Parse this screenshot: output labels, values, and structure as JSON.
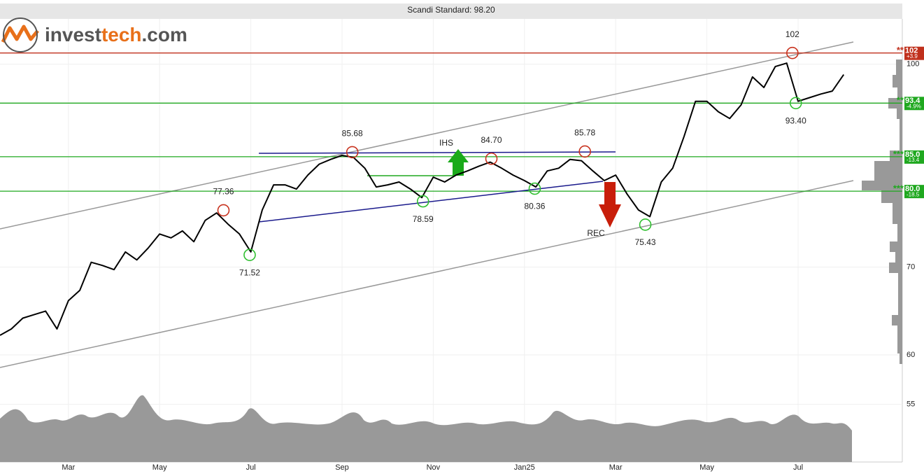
{
  "chart_data": {
    "type": "line",
    "title": "Scandi Standard: 98.20",
    "logo": [
      "invest",
      "tech",
      ".com"
    ],
    "categories": [
      null,
      null,
      null,
      null,
      null,
      null,
      "Mar",
      null,
      null,
      null,
      null,
      null,
      null,
      null,
      "May",
      null,
      null,
      null,
      null,
      null,
      null,
      null,
      "Jul",
      null,
      null,
      null,
      null,
      null,
      null,
      null,
      "Sep",
      null,
      null,
      null,
      null,
      null,
      null,
      null,
      "Nov",
      null,
      null,
      null,
      null,
      null,
      null,
      null,
      "Jan25",
      null,
      null,
      null,
      null,
      null,
      null,
      null,
      "Mar",
      null,
      null,
      null,
      null,
      null,
      null,
      null,
      "May",
      null,
      null,
      null,
      null,
      null,
      null,
      null,
      "Jul",
      null,
      null,
      null,
      null
    ],
    "values": [
      62.1,
      62.8,
      64.0,
      64.4,
      64.8,
      62.8,
      66.0,
      67.2,
      70.6,
      70.2,
      69.7,
      71.9,
      70.9,
      72.4,
      74.2,
      73.7,
      74.6,
      73.2,
      76.0,
      77.0,
      75.5,
      74.2,
      71.9,
      77.4,
      80.9,
      80.9,
      80.3,
      82.3,
      83.9,
      84.6,
      85.2,
      84.9,
      83.3,
      80.6,
      80.9,
      81.3,
      80.3,
      79.1,
      82.0,
      81.3,
      82.3,
      82.9,
      83.6,
      84.2,
      83.3,
      82.3,
      81.5,
      80.6,
      82.9,
      83.3,
      84.6,
      84.4,
      82.9,
      81.5,
      82.3,
      79.6,
      77.4,
      76.5,
      81.3,
      83.3,
      88.1,
      93.7,
      93.7,
      92.0,
      90.9,
      93.1,
      97.8,
      96.0,
      99.6,
      100.2,
      93.7,
      94.3,
      94.9,
      95.4,
      98.2
    ],
    "color": "#000000",
    "yscale": "log",
    "ylim": [
      49.7,
      108.3
    ],
    "yticks": [
      55,
      60,
      70,
      100
    ],
    "levels": [
      {
        "value": 102,
        "label": "102",
        "change": "+3.9",
        "stars": "**",
        "color": "#c0301c"
      },
      {
        "value": 93.4,
        "label": "93.4",
        "change": "-4.9%",
        "stars": "**",
        "color": "#1fa81f"
      },
      {
        "value": 85.0,
        "label": "85.0",
        "change": "-13.4",
        "stars": "***",
        "color": "#1fa81f"
      },
      {
        "value": 80.0,
        "label": "80.0",
        "change": "-18.5",
        "stars": "***",
        "color": "#1fa81f"
      }
    ],
    "pivots": [
      {
        "x": 19.6,
        "value": 77.36,
        "label": "77.36",
        "kind": "top"
      },
      {
        "x": 21.9,
        "value": 71.52,
        "label": "71.52",
        "kind": "bottom"
      },
      {
        "x": 30.9,
        "value": 85.68,
        "label": "85.68",
        "kind": "top"
      },
      {
        "x": 37.1,
        "value": 78.59,
        "label": "78.59",
        "kind": "bottom"
      },
      {
        "x": 43.1,
        "value": 84.7,
        "label": "84.70",
        "kind": "top"
      },
      {
        "x": 46.9,
        "value": 80.36,
        "label": "80.36",
        "kind": "bottom"
      },
      {
        "x": 51.3,
        "value": 85.78,
        "label": "85.78",
        "kind": "top"
      },
      {
        "x": 56.6,
        "value": 75.43,
        "label": "75.43",
        "kind": "bottom"
      },
      {
        "x": 69.5,
        "value": 102,
        "label": "102",
        "kind": "top"
      },
      {
        "x": 69.8,
        "value": 93.4,
        "label": "93.40",
        "kind": "bottom"
      }
    ],
    "annotations": [
      "IHS",
      "REC"
    ]
  }
}
